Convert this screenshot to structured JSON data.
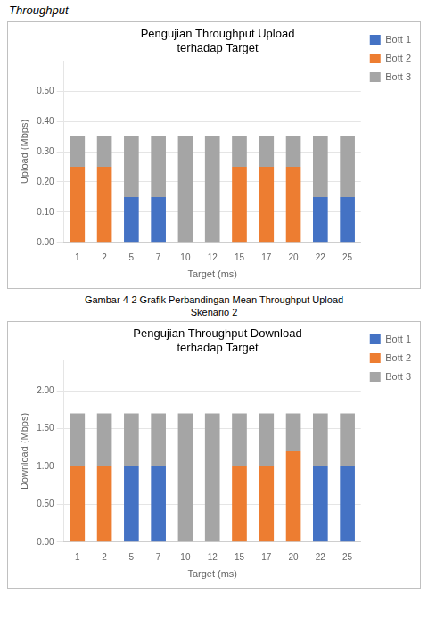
{
  "header": "Throughput",
  "caption": [
    "Gambar 4-2 Grafik Perbandingan Mean Throughput Upload",
    "Skenario 2"
  ],
  "chart_data": [
    {
      "type": "bar",
      "stacked": true,
      "title": [
        "Pengujian Throughput Upload",
        "terhadap Target"
      ],
      "x_label": "Target (ms)",
      "y_label": "Upload (Mbps)",
      "categories": [
        "1",
        "2",
        "5",
        "7",
        "10",
        "12",
        "15",
        "17",
        "20",
        "22",
        "25"
      ],
      "series": [
        {
          "name": "Bott 1",
          "color": "#4472c4",
          "values": [
            0.0,
            0.0,
            0.15,
            0.15,
            0.0,
            0.0,
            0.0,
            0.0,
            0.0,
            0.15,
            0.15
          ]
        },
        {
          "name": "Bott 2",
          "color": "#ed7d31",
          "values": [
            0.25,
            0.25,
            0.0,
            0.0,
            0.0,
            0.0,
            0.25,
            0.25,
            0.25,
            0.0,
            0.0
          ]
        },
        {
          "name": "Bott 3",
          "color": "#a5a5a5",
          "values": [
            0.1,
            0.1,
            0.2,
            0.2,
            0.35,
            0.35,
            0.1,
            0.1,
            0.1,
            0.2,
            0.2
          ]
        }
      ],
      "ylim": [
        0,
        0.6
      ],
      "yticks": [
        {
          "value": 0,
          "label": "0.00"
        },
        {
          "value": 0.1,
          "label": "0.10"
        },
        {
          "value": 0.2,
          "label": "0.20"
        },
        {
          "value": 0.3,
          "label": "0.30"
        },
        {
          "value": 0.4,
          "label": "0.40"
        },
        {
          "value": 0.5,
          "label": "0.50"
        }
      ],
      "grid": true,
      "legend": "right"
    },
    {
      "type": "bar",
      "stacked": true,
      "title": [
        "Pengujian Throughput Download",
        "terhadap Target"
      ],
      "x_label": "Target (ms)",
      "y_label": "Download (Mbps)",
      "categories": [
        "1",
        "2",
        "5",
        "7",
        "10",
        "12",
        "15",
        "17",
        "20",
        "22",
        "25"
      ],
      "series": [
        {
          "name": "Bott 1",
          "color": "#4472c4",
          "values": [
            0.0,
            0.0,
            1.0,
            1.0,
            0.0,
            0.0,
            0.0,
            0.0,
            0.0,
            1.0,
            1.0
          ]
        },
        {
          "name": "Bott 2",
          "color": "#ed7d31",
          "values": [
            1.0,
            1.0,
            0.0,
            0.0,
            0.0,
            0.0,
            1.0,
            1.0,
            1.2,
            0.0,
            0.0
          ]
        },
        {
          "name": "Bott 3",
          "color": "#a5a5a5",
          "values": [
            0.7,
            0.7,
            0.7,
            0.7,
            1.7,
            1.7,
            0.7,
            0.7,
            0.5,
            0.7,
            0.7
          ]
        }
      ],
      "ylim": [
        0,
        2.4
      ],
      "yticks": [
        {
          "value": 0,
          "label": "0.00"
        },
        {
          "value": 0.5,
          "label": "0.50"
        },
        {
          "value": 1,
          "label": "1.00"
        },
        {
          "value": 1.5,
          "label": "1.50"
        },
        {
          "value": 2,
          "label": "2.00"
        }
      ],
      "grid": true,
      "legend": "right"
    }
  ]
}
